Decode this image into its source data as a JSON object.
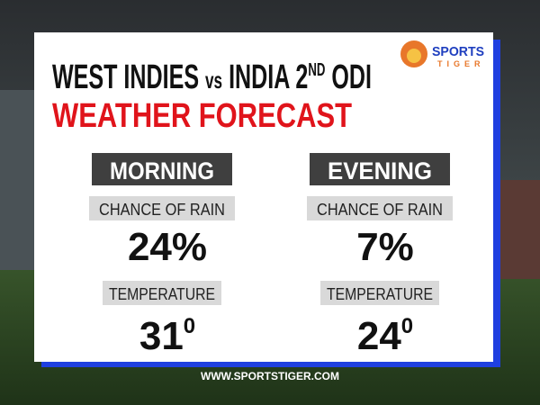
{
  "logo": {
    "brand_top": "SPORTS",
    "brand_bottom": "TIGER"
  },
  "header": {
    "title_parts": [
      "WEST INDIES",
      "vs",
      "INDIA",
      "2",
      "ND",
      "ODI"
    ],
    "subtitle": "WEATHER FORECAST"
  },
  "columns": [
    {
      "heading": "MORNING",
      "rain_label": "CHANCE OF RAIN",
      "rain_value": "24%",
      "temp_label": "TEMPERATURE",
      "temp_value": "31",
      "temp_unit": "0"
    },
    {
      "heading": "EVENING",
      "rain_label": "CHANCE OF RAIN",
      "rain_value": "7%",
      "temp_label": "TEMPERATURE",
      "temp_value": "24",
      "temp_unit": "0"
    }
  ],
  "footer": {
    "url": "WWW.SPORTSTIGER.COM"
  }
}
